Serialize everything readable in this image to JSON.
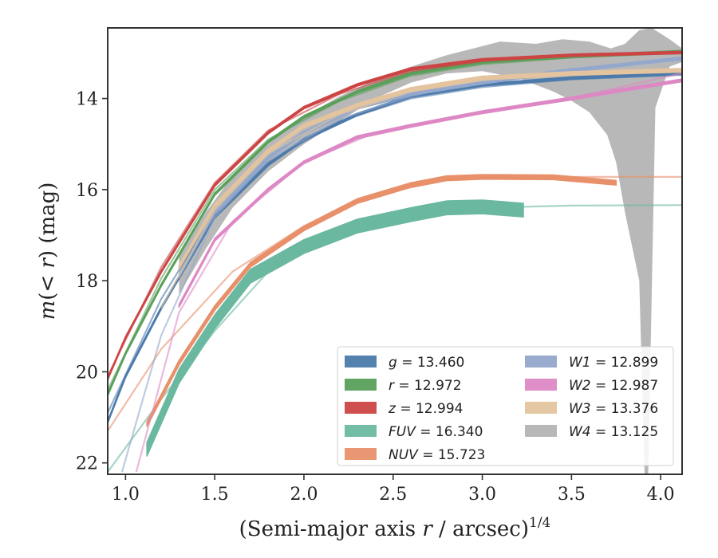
{
  "chart_data": {
    "type": "line",
    "xlabel_pre": "(Semi-major axis ",
    "xlabel_var": "r",
    "xlabel_post": " / arcsec)",
    "xlabel_sup": "1/4",
    "ylabel_pre": "m",
    "ylabel_mid": "(< ",
    "ylabel_var": "r",
    "ylabel_post": ") (mag)",
    "xlim": [
      0.9,
      4.12
    ],
    "ylim": [
      22.25,
      12.45
    ],
    "y_inverted": true,
    "x_ticks": [
      1.0,
      1.5,
      2.0,
      2.5,
      3.0,
      3.5,
      4.0
    ],
    "x_tick_labels": [
      "1.0",
      "1.5",
      "2.0",
      "2.5",
      "3.0",
      "3.5",
      "4.0"
    ],
    "y_ticks": [
      14,
      16,
      18,
      20,
      22
    ],
    "y_tick_labels": [
      "14",
      "16",
      "18",
      "20",
      "22"
    ],
    "grid": false,
    "legend_position": "lower-right",
    "series": [
      {
        "name": "g",
        "label": "g = 13.460",
        "color": "#4c7aab",
        "band_width": 0.05,
        "points": [
          [
            0.9,
            21.1
          ],
          [
            1.0,
            20.1
          ],
          [
            1.2,
            18.6
          ],
          [
            1.5,
            16.6
          ],
          [
            1.8,
            15.45
          ],
          [
            2.0,
            14.9
          ],
          [
            2.3,
            14.35
          ],
          [
            2.6,
            13.95
          ],
          [
            3.0,
            13.7
          ],
          [
            3.5,
            13.55
          ],
          [
            4.12,
            13.45
          ]
        ],
        "model": [
          [
            0.9,
            20.9
          ],
          [
            1.2,
            18.4
          ],
          [
            1.5,
            16.5
          ],
          [
            1.8,
            15.4
          ],
          [
            2.2,
            14.5
          ],
          [
            2.6,
            14.0
          ],
          [
            3.0,
            13.75
          ],
          [
            3.5,
            13.58
          ],
          [
            4.12,
            13.48
          ]
        ]
      },
      {
        "name": "r",
        "label": "r = 12.972",
        "color": "#5aa05a",
        "band_width": 0.05,
        "points": [
          [
            0.9,
            20.5
          ],
          [
            1.0,
            19.6
          ],
          [
            1.2,
            18.1
          ],
          [
            1.5,
            16.1
          ],
          [
            1.8,
            14.95
          ],
          [
            2.0,
            14.4
          ],
          [
            2.3,
            13.85
          ],
          [
            2.6,
            13.45
          ],
          [
            3.0,
            13.2
          ],
          [
            3.5,
            13.08
          ],
          [
            4.12,
            12.97
          ]
        ],
        "model": [
          [
            0.9,
            20.4
          ],
          [
            1.2,
            17.95
          ],
          [
            1.5,
            16.0
          ],
          [
            1.8,
            14.9
          ],
          [
            2.2,
            14.05
          ],
          [
            2.6,
            13.5
          ],
          [
            3.0,
            13.25
          ],
          [
            3.5,
            13.1
          ],
          [
            4.12,
            13.0
          ]
        ]
      },
      {
        "name": "z",
        "label": "z = 12.994",
        "color": "#cc4444",
        "band_width": 0.05,
        "points": [
          [
            0.9,
            20.15
          ],
          [
            1.0,
            19.25
          ],
          [
            1.2,
            17.8
          ],
          [
            1.5,
            15.9
          ],
          [
            1.8,
            14.75
          ],
          [
            2.0,
            14.2
          ],
          [
            2.3,
            13.7
          ],
          [
            2.6,
            13.35
          ],
          [
            3.0,
            13.15
          ],
          [
            3.5,
            13.05
          ],
          [
            4.12,
            12.99
          ]
        ],
        "model": [
          [
            0.9,
            20.1
          ],
          [
            1.2,
            17.7
          ],
          [
            1.5,
            15.85
          ],
          [
            1.8,
            14.7
          ],
          [
            2.2,
            13.9
          ],
          [
            2.6,
            13.4
          ],
          [
            3.0,
            13.18
          ],
          [
            3.5,
            13.06
          ],
          [
            4.12,
            13.0
          ]
        ]
      },
      {
        "name": "FUV",
        "label": "FUV = 16.340",
        "color": "#6bb8a0",
        "band_width": 0.3,
        "points": [
          [
            1.12,
            21.7
          ],
          [
            1.3,
            20.1
          ],
          [
            1.5,
            18.9
          ],
          [
            1.7,
            17.9
          ],
          [
            2.0,
            17.25
          ],
          [
            2.3,
            16.8
          ],
          [
            2.6,
            16.55
          ],
          [
            2.8,
            16.4
          ],
          [
            3.0,
            16.38
          ],
          [
            3.23,
            16.45
          ]
        ],
        "model": [
          [
            0.9,
            22.2
          ],
          [
            1.2,
            20.6
          ],
          [
            1.5,
            19.1
          ],
          [
            1.8,
            17.8
          ],
          [
            2.1,
            17.1
          ],
          [
            2.5,
            16.65
          ],
          [
            3.0,
            16.4
          ],
          [
            3.5,
            16.35
          ],
          [
            4.12,
            16.34
          ]
        ]
      },
      {
        "name": "NUV",
        "label": "NUV = 15.723",
        "color": "#e8906a",
        "band_width": 0.1,
        "points": [
          [
            1.12,
            21.15
          ],
          [
            1.3,
            19.8
          ],
          [
            1.5,
            18.6
          ],
          [
            1.7,
            17.65
          ],
          [
            2.0,
            16.85
          ],
          [
            2.3,
            16.25
          ],
          [
            2.6,
            15.9
          ],
          [
            2.8,
            15.75
          ],
          [
            3.0,
            15.72
          ],
          [
            3.4,
            15.73
          ],
          [
            3.75,
            15.85
          ]
        ],
        "model": [
          [
            0.9,
            21.3
          ],
          [
            1.2,
            19.5
          ],
          [
            1.6,
            17.8
          ],
          [
            2.0,
            16.8
          ],
          [
            2.4,
            16.1
          ],
          [
            2.8,
            15.8
          ],
          [
            3.2,
            15.73
          ],
          [
            3.6,
            15.72
          ],
          [
            4.12,
            15.72
          ]
        ]
      },
      {
        "name": "W1",
        "label": "W1 = 12.899",
        "color": "#93a8cc",
        "band_width": 0.06,
        "points": [
          [
            1.3,
            17.9
          ],
          [
            1.5,
            16.5
          ],
          [
            1.8,
            15.3
          ],
          [
            2.0,
            14.75
          ],
          [
            2.3,
            14.2
          ],
          [
            2.6,
            13.9
          ],
          [
            3.0,
            13.65
          ],
          [
            3.5,
            13.38
          ],
          [
            4.12,
            13.12
          ]
        ],
        "model": [
          [
            0.98,
            22.2
          ],
          [
            1.2,
            19.2
          ],
          [
            1.5,
            16.6
          ],
          [
            1.8,
            15.35
          ],
          [
            2.2,
            14.45
          ],
          [
            2.6,
            13.95
          ],
          [
            3.0,
            13.6
          ],
          [
            3.5,
            13.35
          ],
          [
            4.12,
            13.15
          ]
        ]
      },
      {
        "name": "W2",
        "label": "W2 = 12.987",
        "color": "#dd88c4",
        "band_width": 0.06,
        "points": [
          [
            1.3,
            18.55
          ],
          [
            1.5,
            17.1
          ],
          [
            1.8,
            16.0
          ],
          [
            2.0,
            15.4
          ],
          [
            2.3,
            14.85
          ],
          [
            2.6,
            14.6
          ],
          [
            3.0,
            14.3
          ],
          [
            3.5,
            14.0
          ],
          [
            4.12,
            13.6
          ]
        ],
        "model": [
          [
            1.06,
            22.2
          ],
          [
            1.3,
            18.7
          ],
          [
            1.6,
            16.7
          ],
          [
            2.0,
            15.4
          ],
          [
            2.4,
            14.75
          ],
          [
            2.8,
            14.45
          ],
          [
            3.2,
            14.2
          ],
          [
            3.6,
            13.9
          ],
          [
            4.12,
            13.45
          ]
        ]
      },
      {
        "name": "W3",
        "label": "W3 = 13.376",
        "color": "#e3c49e",
        "band_width": 0.08,
        "points": [
          [
            1.3,
            17.7
          ],
          [
            1.5,
            16.35
          ],
          [
            1.8,
            15.15
          ],
          [
            2.0,
            14.6
          ],
          [
            2.3,
            14.15
          ],
          [
            2.6,
            13.8
          ],
          [
            3.0,
            13.55
          ],
          [
            3.5,
            13.45
          ],
          [
            4.12,
            13.38
          ]
        ],
        "model": [
          [
            1.2,
            18.6
          ],
          [
            1.5,
            16.45
          ],
          [
            1.8,
            15.2
          ],
          [
            2.2,
            14.35
          ],
          [
            2.6,
            13.85
          ],
          [
            3.0,
            13.6
          ],
          [
            3.5,
            13.45
          ],
          [
            4.12,
            13.4
          ]
        ]
      },
      {
        "name": "W4",
        "label": "W4 = 13.125",
        "color": "#b4b4b4",
        "band_width": 0,
        "points": [],
        "model": []
      }
    ],
    "w4_band": {
      "upper": [
        [
          1.3,
          17.45
        ],
        [
          1.45,
          16.5
        ],
        [
          1.6,
          15.7
        ],
        [
          1.8,
          15.0
        ],
        [
          2.0,
          14.4
        ],
        [
          2.2,
          13.95
        ],
        [
          2.4,
          13.6
        ],
        [
          2.6,
          13.3
        ],
        [
          2.8,
          13.05
        ],
        [
          2.95,
          12.9
        ],
        [
          3.1,
          12.75
        ],
        [
          3.3,
          12.8
        ],
        [
          3.45,
          12.7
        ],
        [
          3.6,
          12.75
        ],
        [
          3.72,
          12.9
        ],
        [
          3.8,
          12.8
        ],
        [
          3.88,
          12.5
        ],
        [
          3.95,
          12.45
        ],
        [
          4.05,
          12.7
        ],
        [
          4.12,
          12.9
        ]
      ],
      "lower": [
        [
          4.12,
          13.2
        ],
        [
          4.05,
          13.3
        ],
        [
          3.97,
          14.2
        ],
        [
          3.93,
          22.25
        ],
        [
          3.91,
          22.25
        ],
        [
          3.88,
          18.0
        ],
        [
          3.8,
          16.5
        ],
        [
          3.75,
          15.4
        ],
        [
          3.7,
          14.8
        ],
        [
          3.6,
          14.3
        ],
        [
          3.5,
          14.05
        ],
        [
          3.4,
          13.85
        ],
        [
          3.3,
          13.7
        ],
        [
          3.2,
          13.55
        ],
        [
          3.0,
          13.4
        ],
        [
          2.8,
          13.45
        ],
        [
          2.6,
          13.65
        ],
        [
          2.4,
          14.0
        ],
        [
          2.2,
          14.5
        ],
        [
          2.0,
          15.0
        ],
        [
          1.8,
          15.6
        ],
        [
          1.6,
          16.4
        ],
        [
          1.45,
          17.3
        ],
        [
          1.3,
          18.3
        ]
      ]
    }
  }
}
